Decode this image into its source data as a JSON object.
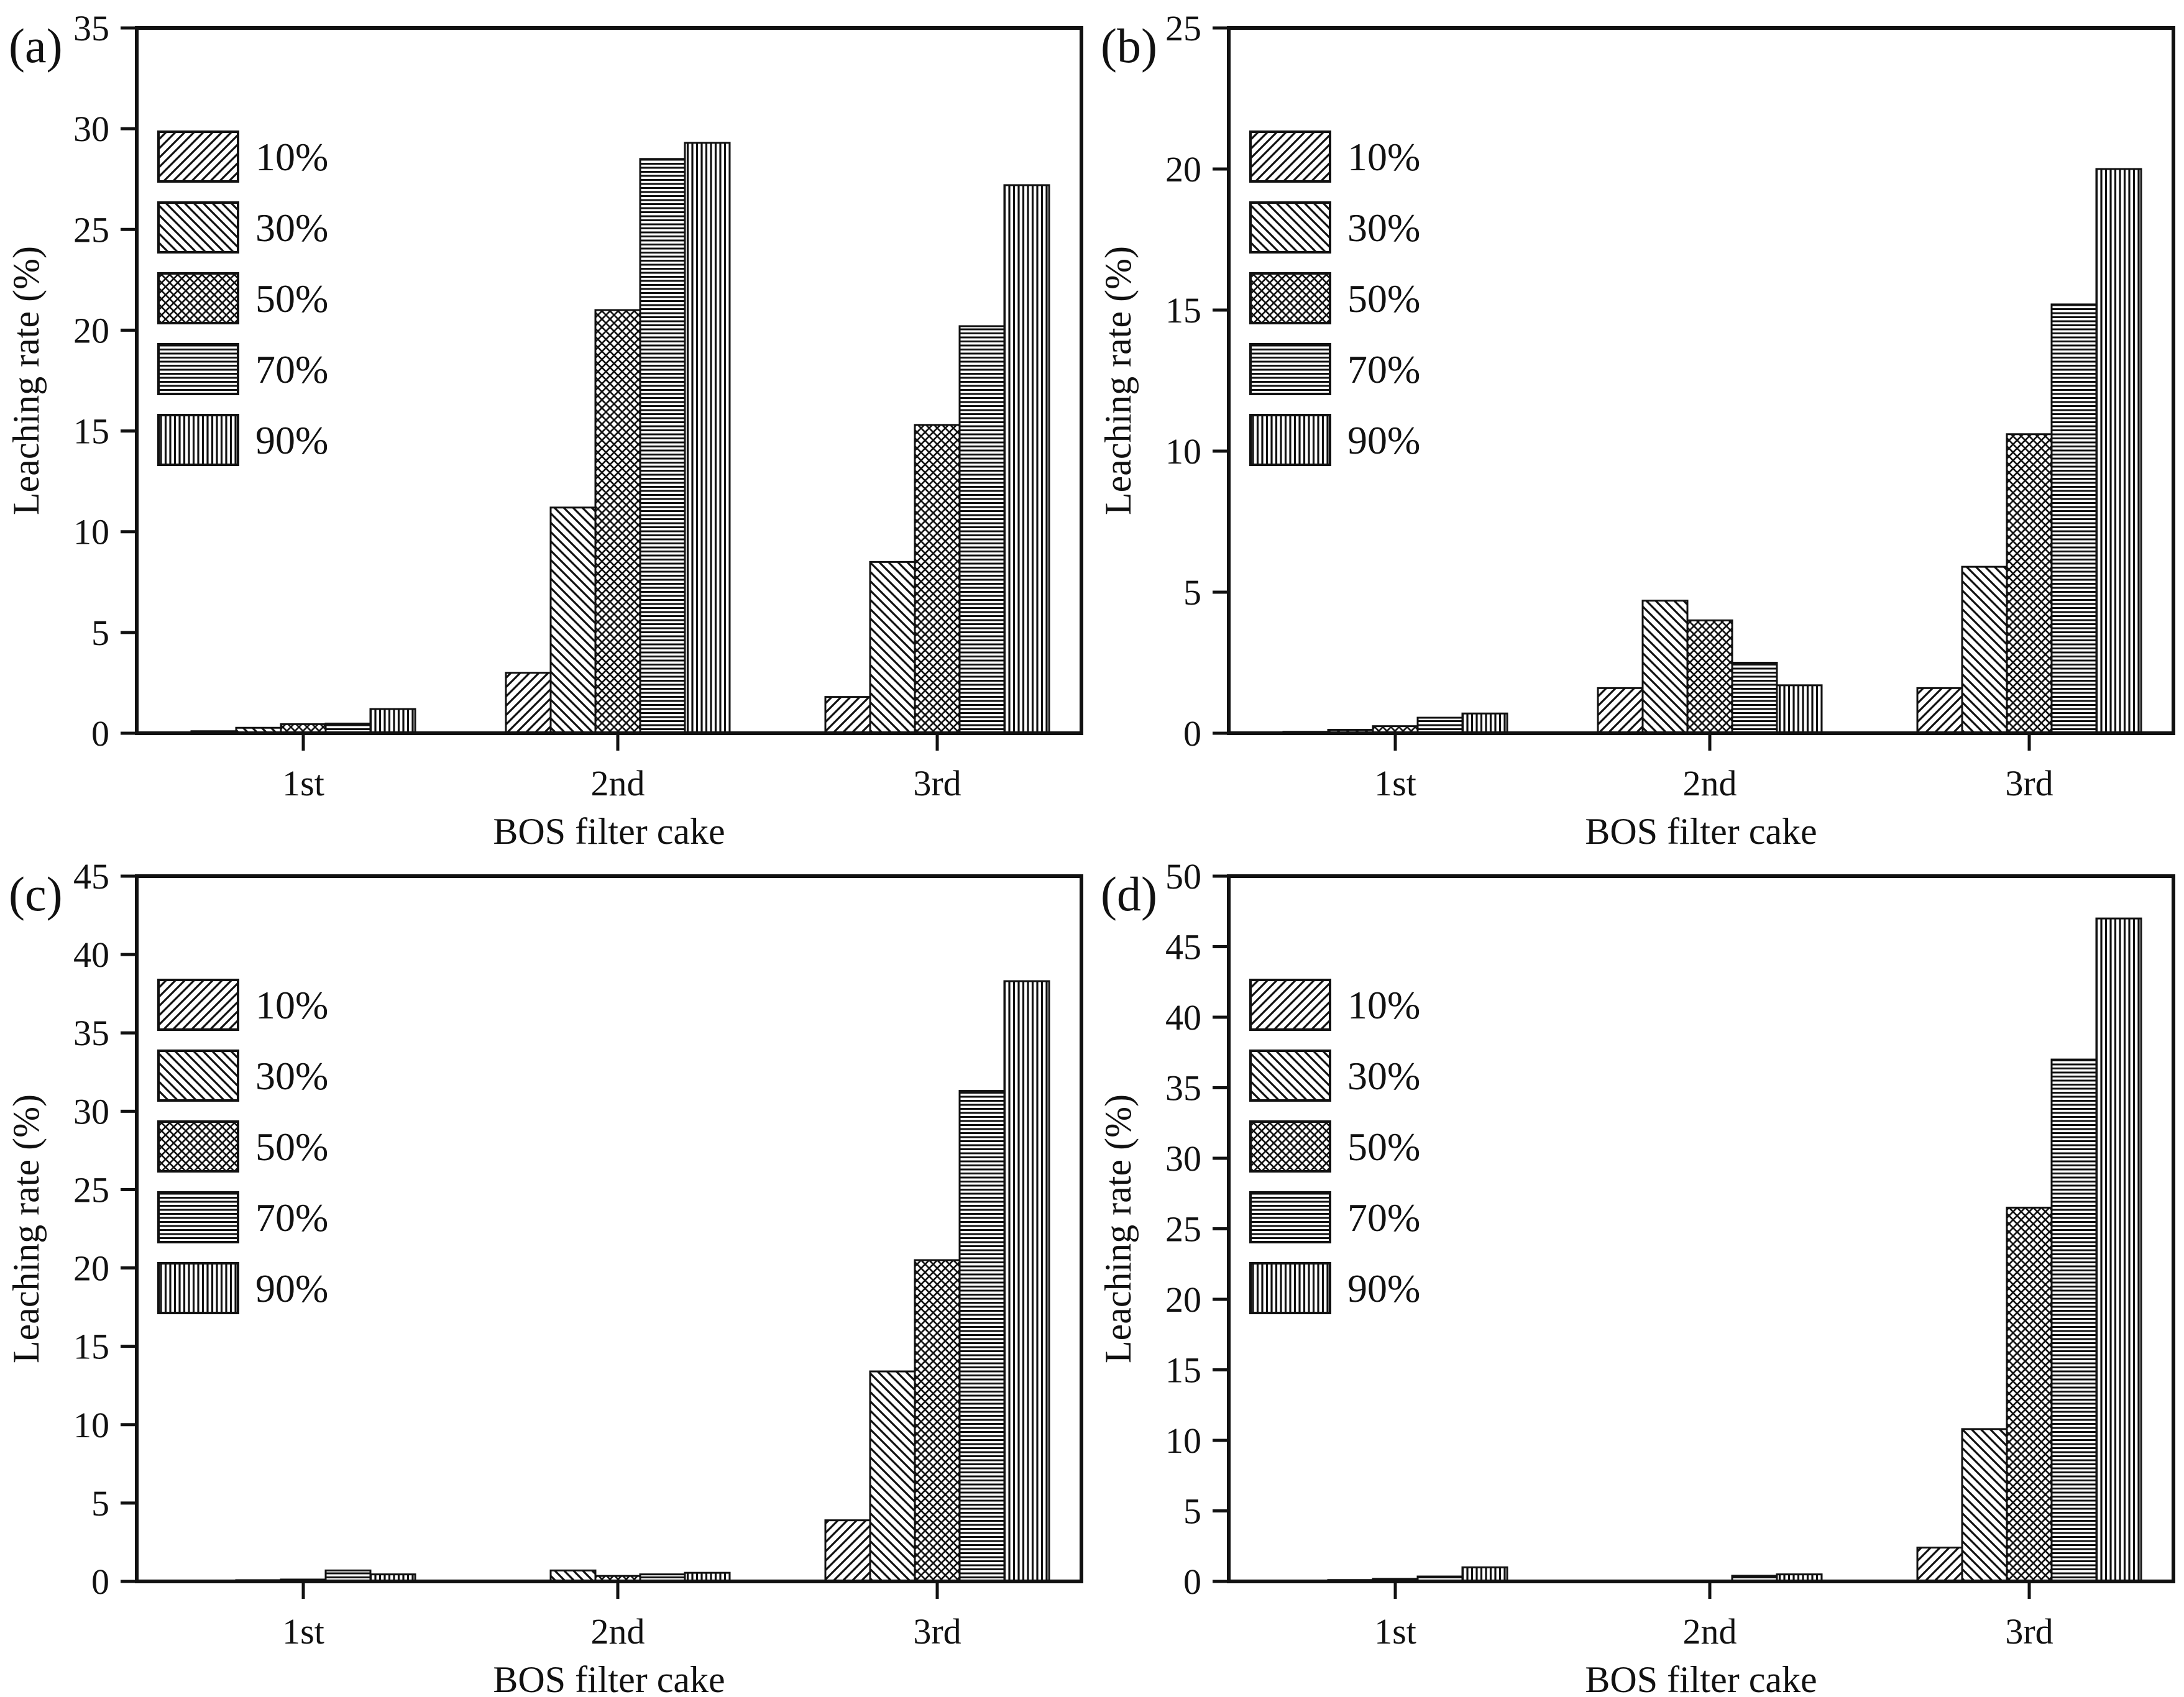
{
  "figure": {
    "background": "#ffffff",
    "ink_color": "#111111",
    "xlabel": "BOS filter cake",
    "ylabel": "Leaching rate (%)",
    "categories": [
      "1st",
      "2nd",
      "3rd"
    ],
    "legend_labels": [
      "10%",
      "30%",
      "50%",
      "70%",
      "90%"
    ],
    "legend_patterns": [
      "diagonal-up-icon",
      "diagonal-down-icon",
      "crosshatch-icon",
      "horizontal-lines-icon",
      "vertical-lines-icon"
    ]
  },
  "chart_data": [
    {
      "type": "bar",
      "panel_label": "(a)",
      "title": "",
      "xlabel": "BOS filter cake",
      "ylabel": "Leaching rate (%)",
      "categories": [
        "1st",
        "2nd",
        "3rd"
      ],
      "ylim": [
        0,
        35
      ],
      "ytick_step": 5,
      "grid": false,
      "legend_position": "upper-left",
      "series": [
        {
          "name": "10%",
          "pattern": "diag-up",
          "values": [
            0.1,
            3.0,
            1.8
          ]
        },
        {
          "name": "30%",
          "pattern": "diag-down",
          "values": [
            0.27,
            11.2,
            8.5
          ]
        },
        {
          "name": "50%",
          "pattern": "cross",
          "values": [
            0.45,
            21.0,
            15.3
          ]
        },
        {
          "name": "70%",
          "pattern": "horiz",
          "values": [
            0.48,
            28.5,
            20.2
          ]
        },
        {
          "name": "90%",
          "pattern": "vert",
          "values": [
            1.2,
            29.3,
            27.2
          ]
        }
      ]
    },
    {
      "type": "bar",
      "panel_label": "(b)",
      "title": "",
      "xlabel": "BOS filter cake",
      "ylabel": "Leaching rate (%)",
      "categories": [
        "1st",
        "2nd",
        "3rd"
      ],
      "ylim": [
        0,
        25
      ],
      "ytick_step": 5,
      "grid": false,
      "legend_position": "upper-left",
      "series": [
        {
          "name": "10%",
          "pattern": "diag-up",
          "values": [
            0.05,
            1.6,
            1.6
          ]
        },
        {
          "name": "30%",
          "pattern": "diag-down",
          "values": [
            0.12,
            4.7,
            5.9
          ]
        },
        {
          "name": "50%",
          "pattern": "cross",
          "values": [
            0.25,
            4.0,
            10.6
          ]
        },
        {
          "name": "70%",
          "pattern": "horiz",
          "values": [
            0.55,
            2.5,
            15.2
          ]
        },
        {
          "name": "90%",
          "pattern": "vert",
          "values": [
            0.7,
            1.7,
            20.0
          ]
        }
      ]
    },
    {
      "type": "bar",
      "panel_label": "(c)",
      "title": "",
      "xlabel": "BOS filter cake",
      "ylabel": "Leaching rate (%)",
      "categories": [
        "1st",
        "2nd",
        "3rd"
      ],
      "ylim": [
        0,
        45
      ],
      "ytick_step": 5,
      "grid": false,
      "legend_position": "upper-left",
      "series": [
        {
          "name": "10%",
          "pattern": "diag-up",
          "values": [
            0.05,
            0.05,
            3.9
          ]
        },
        {
          "name": "30%",
          "pattern": "diag-down",
          "values": [
            0.08,
            0.7,
            13.4
          ]
        },
        {
          "name": "50%",
          "pattern": "cross",
          "values": [
            0.12,
            0.35,
            20.5
          ]
        },
        {
          "name": "70%",
          "pattern": "horiz",
          "values": [
            0.7,
            0.45,
            31.3
          ]
        },
        {
          "name": "90%",
          "pattern": "vert",
          "values": [
            0.45,
            0.55,
            38.3
          ]
        }
      ]
    },
    {
      "type": "bar",
      "panel_label": "(d)",
      "title": "",
      "xlabel": "BOS filter cake",
      "ylabel": "Leaching rate (%)",
      "categories": [
        "1st",
        "2nd",
        "3rd"
      ],
      "ylim": [
        0,
        50
      ],
      "ytick_step": 5,
      "grid": false,
      "legend_position": "upper-left",
      "series": [
        {
          "name": "10%",
          "pattern": "diag-up",
          "values": [
            0.05,
            0.02,
            2.4
          ]
        },
        {
          "name": "30%",
          "pattern": "diag-down",
          "values": [
            0.1,
            0.03,
            10.8
          ]
        },
        {
          "name": "50%",
          "pattern": "cross",
          "values": [
            0.18,
            0.05,
            26.5
          ]
        },
        {
          "name": "70%",
          "pattern": "horiz",
          "values": [
            0.35,
            0.4,
            37.0
          ]
        },
        {
          "name": "90%",
          "pattern": "vert",
          "values": [
            1.0,
            0.5,
            47.0
          ]
        }
      ]
    }
  ]
}
